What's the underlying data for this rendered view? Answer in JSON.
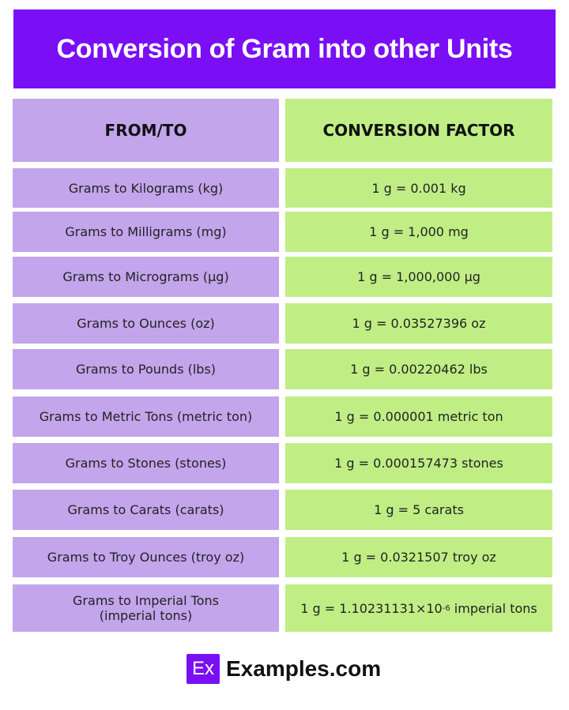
{
  "title": "Conversion of Gram into other Units",
  "header": {
    "from_to": "FROM/TO",
    "factor": "CONVERSION FACTOR"
  },
  "rows": [
    {
      "from_to": "Grams to Kilograms (kg)",
      "factor": "1 g = 0.001 kg"
    },
    {
      "from_to": "Grams to Milligrams (mg)",
      "factor": "1 g = 1,000 mg"
    },
    {
      "from_to": "Grams to Micrograms (µg)",
      "factor": "1 g = 1,000,000 µg"
    },
    {
      "from_to": "Grams to Ounces (oz)",
      "factor": "1 g = 0.03527396 oz"
    },
    {
      "from_to": "Grams to Pounds (lbs)",
      "factor": "1 g = 0.00220462 lbs"
    },
    {
      "from_to": "Grams to Metric Tons (metric ton)",
      "factor": "1 g = 0.000001 metric ton"
    },
    {
      "from_to": "Grams to Stones (stones)",
      "factor": "1 g = 0.000157473 stones"
    },
    {
      "from_to": "Grams to Carats (carats)",
      "factor": "1 g = 5 carats"
    },
    {
      "from_to": "Grams to Troy Ounces (troy oz)",
      "factor": "1 g = 0.0321507 troy oz"
    },
    {
      "from_to": "Grams to Imperial Tons (imperial tons)",
      "factor_prefix": "1 g = 1.10231131×10",
      "factor_exp": "-6",
      "factor_suffix": " imperial tons"
    }
  ],
  "footer": {
    "logo_mark": "Ex",
    "brand": "Examples.com"
  },
  "colors": {
    "title_bg": "#7a0ff5",
    "left_col": "#c3a5ec",
    "right_col": "#c0ee85"
  }
}
